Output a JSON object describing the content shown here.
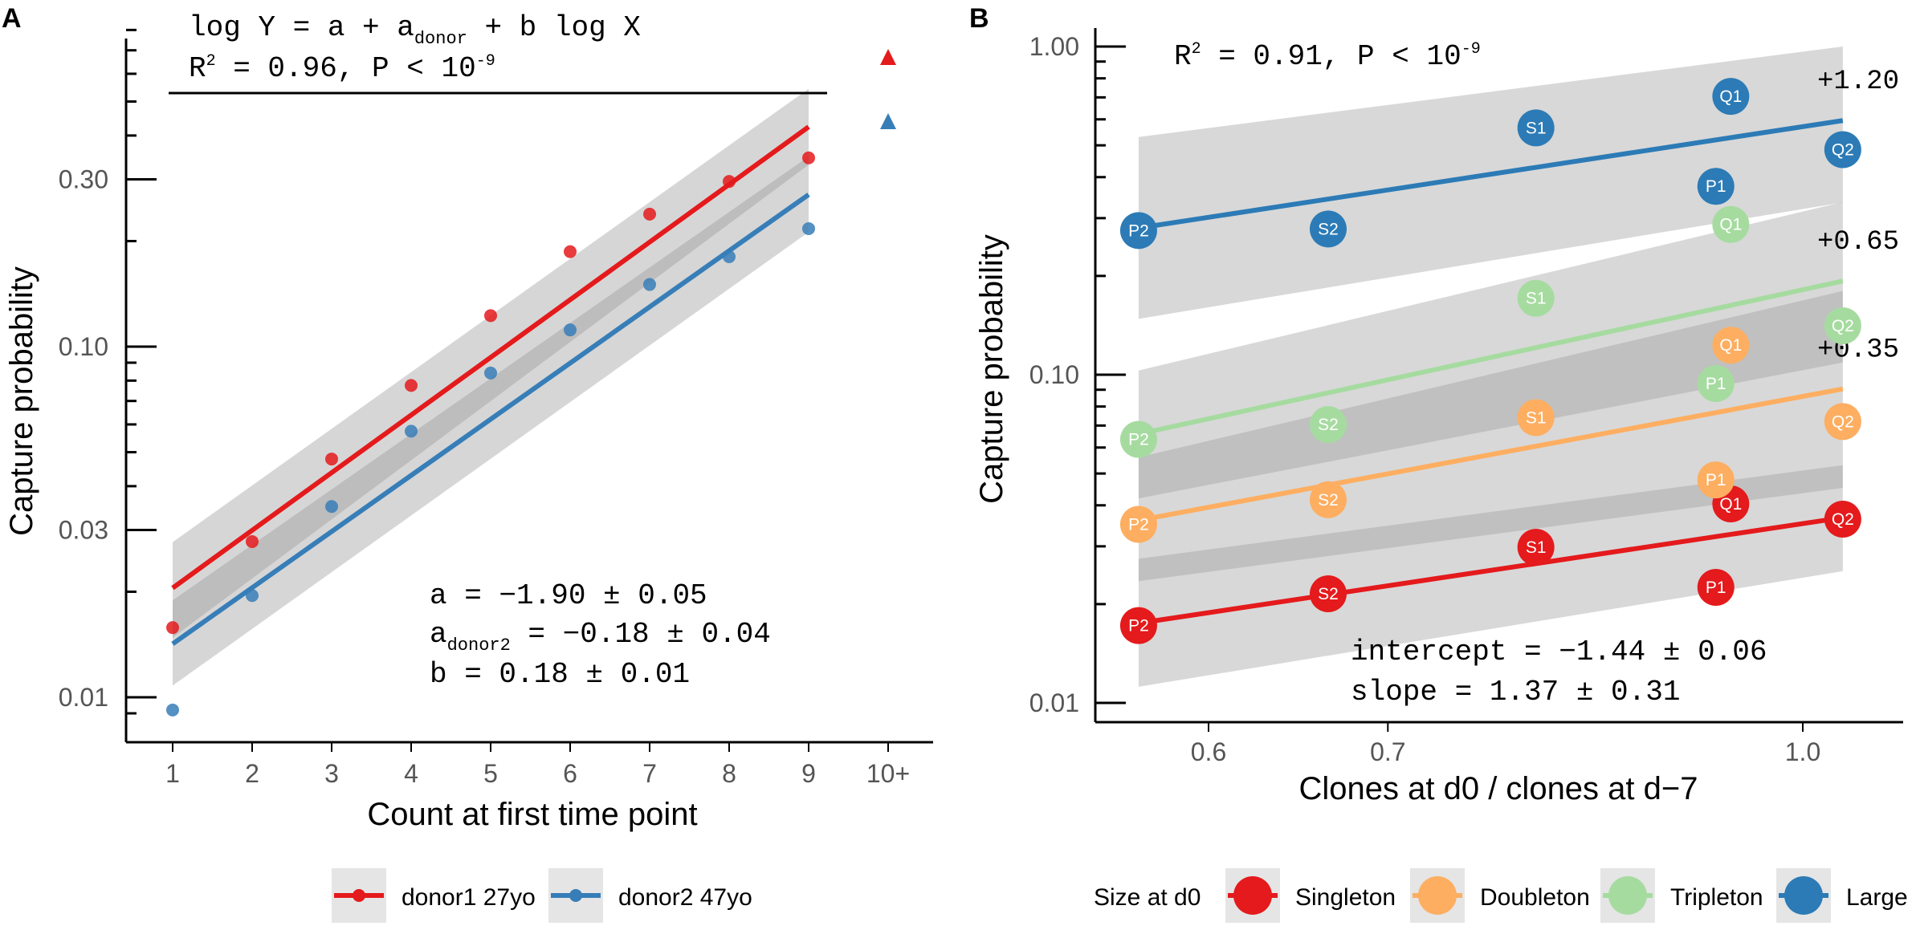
{
  "chart_data": [
    {
      "panel_label": "A",
      "type": "scatter",
      "xlabel": "Count at first time point",
      "ylabel": "Capture probability",
      "x_tick_labels": [
        "1",
        "2",
        "3",
        "4",
        "5",
        "6",
        "7",
        "8",
        "9",
        "10+"
      ],
      "y_ticks": [
        0.01,
        0.03,
        0.1,
        0.3
      ],
      "y_tick_labels": [
        "0.01",
        "0.03",
        "0.10",
        "0.30"
      ],
      "y_scale": "log",
      "ylim": [
        0.008,
        0.9
      ],
      "grid": false,
      "model_line1": "log Y = a + a",
      "model_sub": "donor",
      "model_line1_tail": " + b log X",
      "r2_prefix": "R",
      "r2_sup": "2",
      "r2_mid": " = 0.96, P < 10",
      "r2_exp": "-9",
      "annotation_a": "a = −1.90 ± 0.05",
      "annotation_adonor_prefix": "a",
      "annotation_adonor_sub": "donor2",
      "annotation_adonor_tail": " = −0.18 ± 0.04",
      "annotation_b": "b = 0.18 ± 0.01",
      "series": [
        {
          "name": "donor1 27yo",
          "color": "#e41a1c",
          "x": [
            1,
            2,
            3,
            4,
            5,
            6,
            7,
            8,
            9
          ],
          "values": [
            0.0158,
            0.0278,
            0.0478,
            0.0775,
            0.1226,
            0.1866,
            0.2387,
            0.2958,
            0.3454
          ],
          "fit_start": 0.0205,
          "fit_end": 0.4235,
          "ci_low_start": 0.0148,
          "ci_high_start": 0.0277,
          "ci_low_end": 0.3303,
          "ci_high_end": 0.5439,
          "overflow_marker": "triangle"
        },
        {
          "name": "donor2 47yo",
          "color": "#377eb8",
          "x": [
            1,
            2,
            3,
            4,
            5,
            6,
            7,
            8,
            9
          ],
          "values": [
            0.0092,
            0.0195,
            0.035,
            0.0574,
            0.0841,
            0.1116,
            0.1504,
            0.1805,
            0.217
          ],
          "fit_start": 0.0142,
          "fit_end": 0.2714,
          "ci_low_start": 0.0108,
          "ci_high_start": 0.0189,
          "ci_low_end": 0.2122,
          "ci_high_end": 0.3485,
          "overflow_marker": "triangle"
        }
      ],
      "legend_position": "bottom"
    },
    {
      "panel_label": "B",
      "type": "scatter",
      "xlabel": "Clones at d0 / clones at d−7",
      "ylabel": "Capture probability",
      "x_ticks": [
        0.6,
        0.7,
        1.0
      ],
      "x_tick_labels": [
        "0.6",
        "0.7",
        "1.0"
      ],
      "y_ticks": [
        0.01,
        0.1,
        1.0
      ],
      "y_tick_labels": [
        "0.01",
        "0.10",
        "1.00"
      ],
      "x_scale": "log",
      "y_scale": "log",
      "xlim": [
        0.55,
        1.06
      ],
      "ylim": [
        0.0085,
        1.02
      ],
      "grid": false,
      "r2_prefix": "R",
      "r2_sup": "2",
      "r2_mid": " = 0.91, P < 10",
      "r2_exp": "-9",
      "annotation_intercept": "intercept = −1.44 ± 0.06",
      "annotation_slope": "slope = 1.37 ± 0.31",
      "legend_title": "Size at d0",
      "series": [
        {
          "name": "Singleton",
          "color": "#e41a1c",
          "points": [
            {
              "x": 0.565,
              "y": 0.0172,
              "label": "P2"
            },
            {
              "x": 0.665,
              "y": 0.0215,
              "label": "S2"
            },
            {
              "x": 0.795,
              "y": 0.0298,
              "label": "S1"
            },
            {
              "x": 0.928,
              "y": 0.0225,
              "label": "P1"
            },
            {
              "x": 0.94,
              "y": 0.0404,
              "label": "Q1"
            },
            {
              "x": 1.035,
              "y": 0.0363,
              "label": "Q2"
            }
          ],
          "fit_start": 0.0175,
          "fit_end": 0.0367,
          "ci_low_start": 0.0112,
          "ci_high_start": 0.0275,
          "ci_low_end": 0.0252,
          "ci_high_end": 0.053
        },
        {
          "name": "Doubleton",
          "color": "#fdae61",
          "points": [
            {
              "x": 0.565,
              "y": 0.035,
              "label": "P2"
            },
            {
              "x": 0.665,
              "y": 0.0416,
              "label": "S2"
            },
            {
              "x": 0.795,
              "y": 0.074,
              "label": "S1"
            },
            {
              "x": 0.928,
              "y": 0.0478,
              "label": "P1"
            },
            {
              "x": 0.94,
              "y": 0.123,
              "label": "Q1"
            },
            {
              "x": 1.035,
              "y": 0.072,
              "label": "Q2"
            }
          ],
          "fit_start": 0.036,
          "fit_end": 0.0905,
          "ci_low_start": 0.0235,
          "ci_high_start": 0.056,
          "ci_low_end": 0.0452,
          "ci_high_end": 0.18,
          "offset_label": "+0.35"
        },
        {
          "name": "Tripleton",
          "color": "#a6dba0",
          "points": [
            {
              "x": 0.565,
              "y": 0.0635,
              "label": "P2"
            },
            {
              "x": 0.665,
              "y": 0.0705,
              "label": "S2"
            },
            {
              "x": 0.795,
              "y": 0.171,
              "label": "S1"
            },
            {
              "x": 0.928,
              "y": 0.094,
              "label": "P1"
            },
            {
              "x": 0.94,
              "y": 0.287,
              "label": "Q1"
            },
            {
              "x": 1.035,
              "y": 0.141,
              "label": "Q2"
            }
          ],
          "fit_start": 0.066,
          "fit_end": 0.193,
          "ci_low_start": 0.042,
          "ci_high_start": 0.103,
          "ci_low_end": 0.109,
          "ci_high_end": 0.336,
          "offset_label": "+0.65"
        },
        {
          "name": "Large",
          "color": "#2c7bb6",
          "points": [
            {
              "x": 0.565,
              "y": 0.275,
              "label": "P2"
            },
            {
              "x": 0.665,
              "y": 0.278,
              "label": "S2"
            },
            {
              "x": 0.795,
              "y": 0.565,
              "label": "S1"
            },
            {
              "x": 0.928,
              "y": 0.375,
              "label": "P1"
            },
            {
              "x": 0.94,
              "y": 0.705,
              "label": "Q1"
            },
            {
              "x": 1.035,
              "y": 0.485,
              "label": "Q2"
            }
          ],
          "fit_start": 0.28,
          "fit_end": 0.595,
          "ci_low_start": 0.148,
          "ci_high_start": 0.53,
          "ci_low_end": 0.335,
          "ci_high_end": 1.0,
          "offset_label": "+1.20"
        }
      ],
      "legend_position": "bottom"
    }
  ]
}
